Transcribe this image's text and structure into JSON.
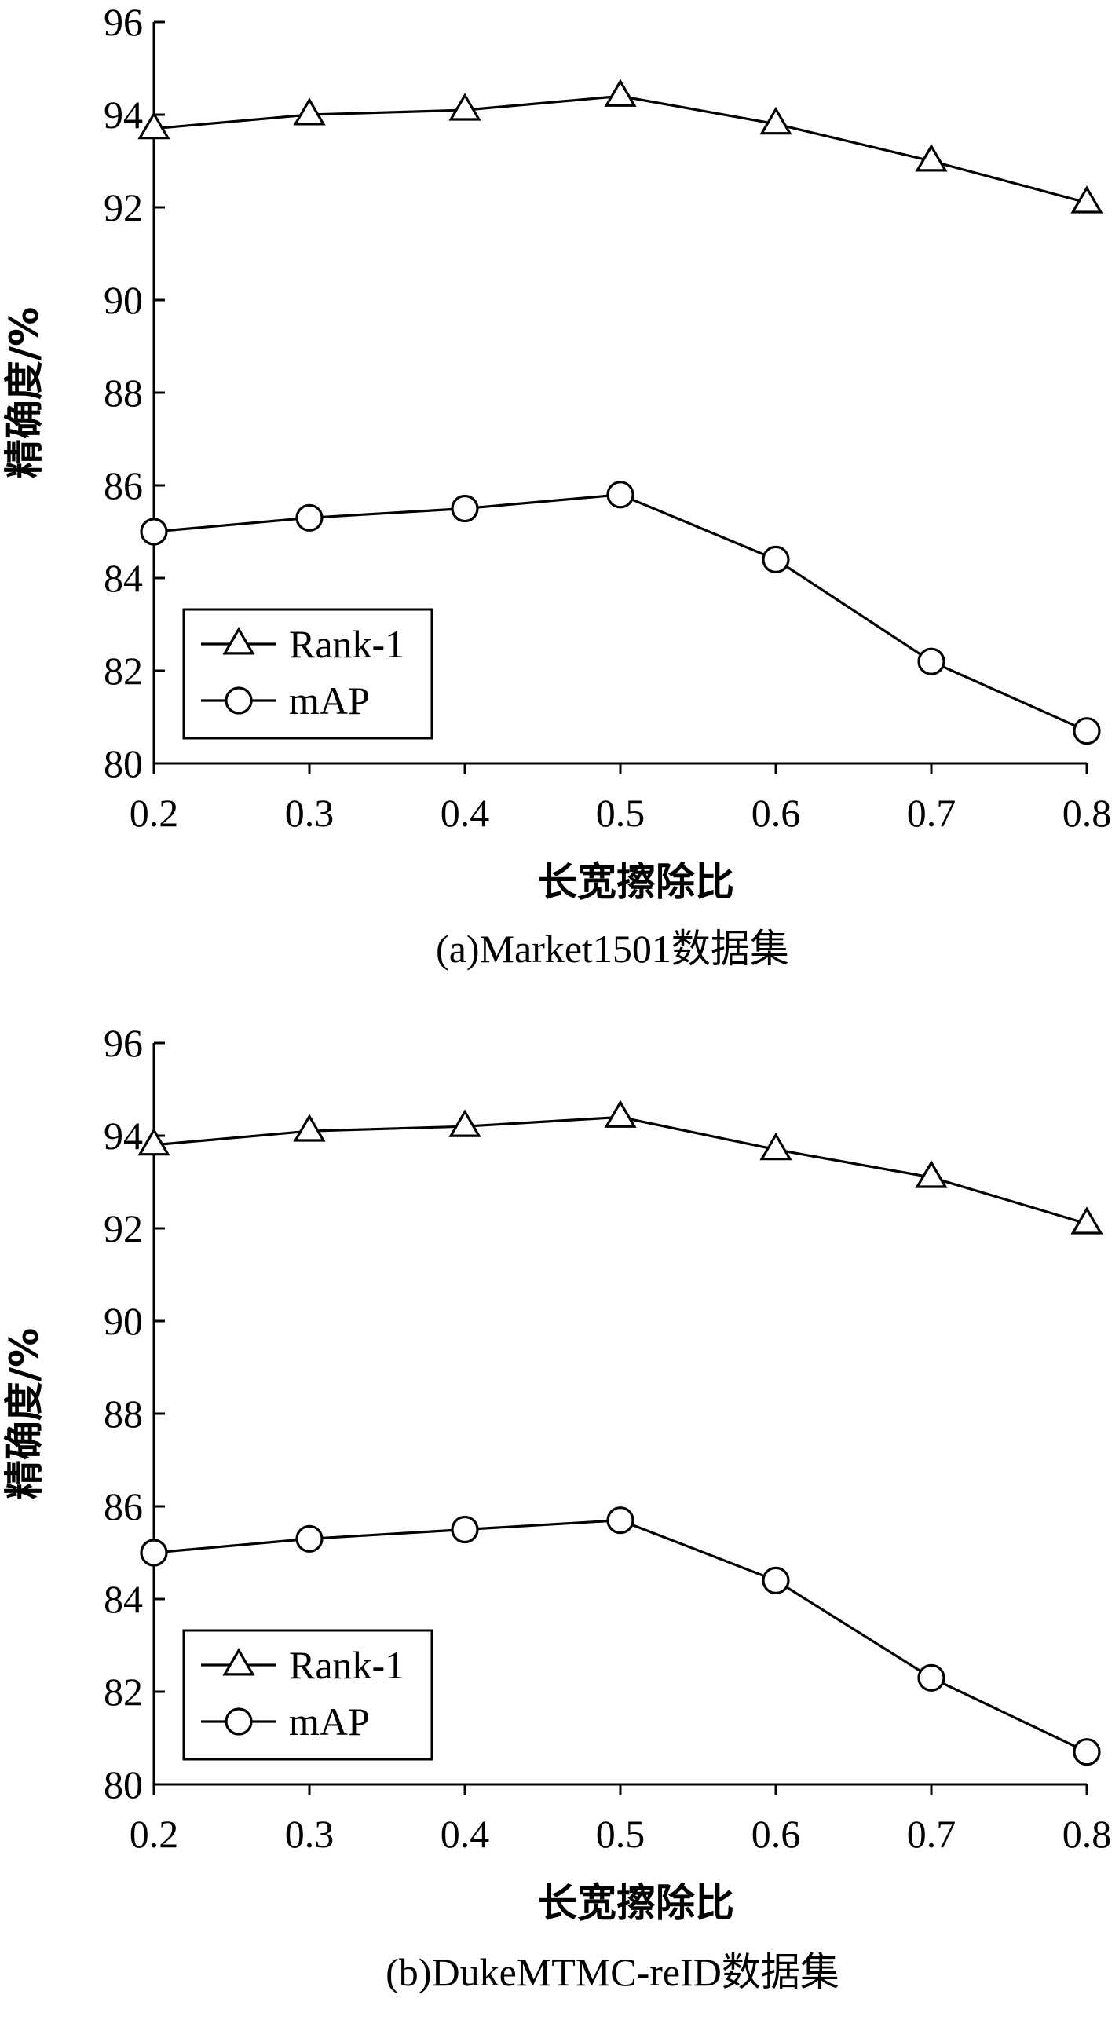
{
  "chart_data": [
    {
      "type": "line",
      "caption": "(a)Market1501数据集",
      "xlabel": "长宽擦除比",
      "ylabel": "精确度/%",
      "x": [
        0.2,
        0.3,
        0.4,
        0.5,
        0.6,
        0.7,
        0.8
      ],
      "x_tick_labels": [
        "0.2",
        "0.3",
        "0.4",
        "0.5",
        "0.6",
        "0.7",
        "0.8"
      ],
      "y_ticks": [
        80,
        82,
        84,
        86,
        88,
        90,
        92,
        94,
        96
      ],
      "y_tick_labels": [
        "80",
        "82",
        "84",
        "86",
        "88",
        "90",
        "92",
        "94",
        "96"
      ],
      "xlim": [
        0.2,
        0.8
      ],
      "ylim": [
        80,
        96
      ],
      "grid": false,
      "legend": "bottom-left",
      "series": [
        {
          "name": "Rank-1",
          "marker": "triangle",
          "values": [
            93.7,
            94.0,
            94.1,
            94.4,
            93.8,
            93.0,
            92.1
          ]
        },
        {
          "name": "mAP",
          "marker": "circle",
          "values": [
            85.0,
            85.3,
            85.5,
            85.8,
            84.4,
            82.2,
            80.7
          ]
        }
      ]
    },
    {
      "type": "line",
      "caption": "(b)DukeMTMC-reID数据集",
      "xlabel": "长宽擦除比",
      "ylabel": "精确度/%",
      "x": [
        0.2,
        0.3,
        0.4,
        0.5,
        0.6,
        0.7,
        0.8
      ],
      "x_tick_labels": [
        "0.2",
        "0.3",
        "0.4",
        "0.5",
        "0.6",
        "0.7",
        "0.8"
      ],
      "y_ticks": [
        80,
        82,
        84,
        86,
        88,
        90,
        92,
        94,
        96
      ],
      "y_tick_labels": [
        "80",
        "82",
        "84",
        "86",
        "88",
        "90",
        "92",
        "94",
        "96"
      ],
      "xlim": [
        0.2,
        0.8
      ],
      "ylim": [
        80,
        96
      ],
      "grid": false,
      "legend": "bottom-left",
      "series": [
        {
          "name": "Rank-1",
          "marker": "triangle",
          "values": [
            93.8,
            94.1,
            94.2,
            94.4,
            93.7,
            93.1,
            92.1
          ]
        },
        {
          "name": "mAP",
          "marker": "circle",
          "values": [
            85.0,
            85.3,
            85.5,
            85.7,
            84.4,
            82.3,
            80.7
          ]
        }
      ]
    }
  ]
}
